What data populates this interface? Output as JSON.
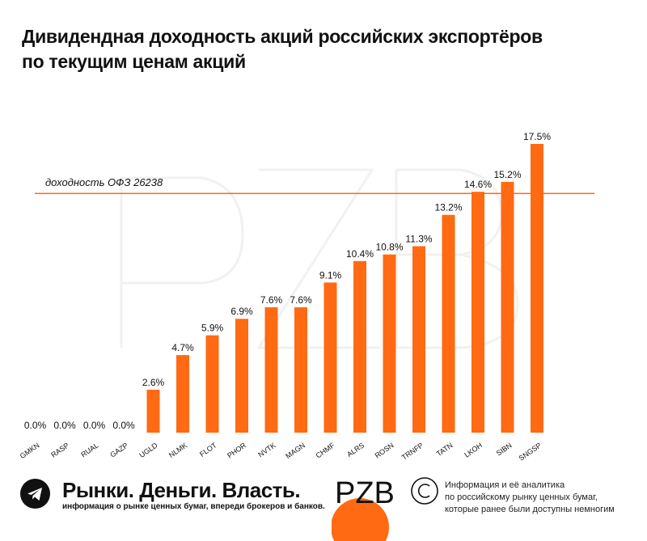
{
  "title_lines": [
    "Дивидендная доходность акций российских экспортёров",
    "по текущим ценам акций"
  ],
  "footer": {
    "brand": "Рынки. Деньги. Власть.",
    "tagline": "информация о рынке ценных бумаг, впереди брокеров и банков.",
    "logo_text": "PZB",
    "note_lines": [
      "Информация и её аналитика",
      "по российскому рынку ценных бумаг,",
      "которые ранее были доступны немногим"
    ]
  },
  "colors": {
    "bar": "#ff6a13",
    "text": "#111111",
    "watermark": "#f2f2f2"
  },
  "icons": [
    "telegram-icon",
    "copyright-icon"
  ],
  "chart_data": {
    "type": "bar",
    "categories": [
      "GMKN",
      "RASP",
      "RUAL",
      "GAZP",
      "UGLD",
      "NLMK",
      "FLOT",
      "PHOR",
      "NVTK",
      "MAGN",
      "CHMF",
      "ALRS",
      "ROSN",
      "TRNFP",
      "TATN",
      "LKOH",
      "SIBN",
      "SNGSP"
    ],
    "values": [
      0.0,
      0.0,
      0.0,
      0.0,
      2.6,
      4.7,
      5.9,
      6.9,
      7.6,
      7.6,
      9.1,
      10.4,
      10.8,
      11.3,
      13.2,
      14.6,
      15.2,
      17.5
    ],
    "value_labels": [
      "0.0%",
      "0.0%",
      "0.0%",
      "0.0%",
      "2.6%",
      "4.7%",
      "5.9%",
      "6.9%",
      "7.6%",
      "7.6%",
      "9.1%",
      "10.4%",
      "10.8%",
      "11.3%",
      "13.2%",
      "14.6%",
      "15.2%",
      "17.5%"
    ],
    "reference_line": {
      "label": "доходность ОФЗ 26238",
      "value": 14.5
    },
    "ylim": [
      0,
      17.5
    ],
    "grid": false,
    "xlabel": "",
    "ylabel": ""
  }
}
